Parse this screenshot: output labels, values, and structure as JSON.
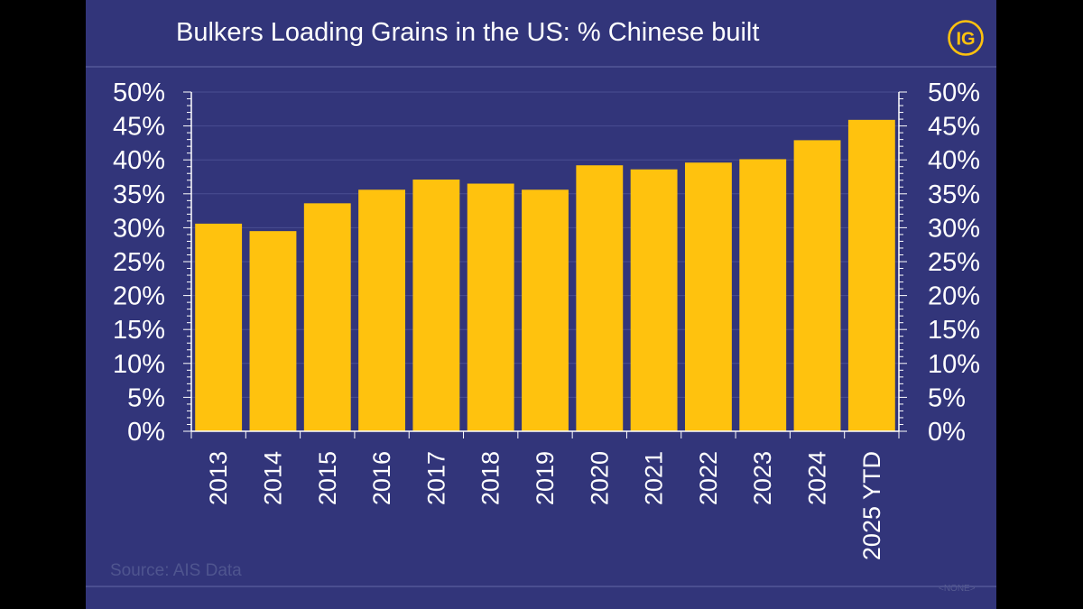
{
  "colors": {
    "background": "#32357a",
    "bar": "#ffc20e",
    "text": "#ffffff",
    "logo": "#ffc20e",
    "source": "#4f558f"
  },
  "logo": {
    "text": "IG"
  },
  "source_text": "Source: AIS Data",
  "watermark_text": "<NONE>",
  "chart_data": {
    "type": "bar",
    "title": "Bulkers Loading Grains in the US: % Chinese built",
    "xlabel": "",
    "ylabel": "",
    "categories": [
      "2013",
      "2014",
      "2015",
      "2016",
      "2017",
      "2018",
      "2019",
      "2020",
      "2021",
      "2022",
      "2023",
      "2024",
      "2025 YTD"
    ],
    "values": [
      30.6,
      29.5,
      33.6,
      35.6,
      37.1,
      36.5,
      35.6,
      39.2,
      38.6,
      39.6,
      40.1,
      42.9,
      45.9
    ],
    "ylim": [
      0,
      50
    ],
    "yticks": [
      "0%",
      "5%",
      "10%",
      "15%",
      "20%",
      "25%",
      "30%",
      "35%",
      "40%",
      "45%",
      "50%"
    ],
    "secondary_yticks": [
      "0%",
      "5%",
      "10%",
      "15%",
      "20%",
      "25%",
      "30%",
      "35%",
      "40%",
      "45%",
      "50%"
    ],
    "grid": true,
    "legend": "none"
  }
}
